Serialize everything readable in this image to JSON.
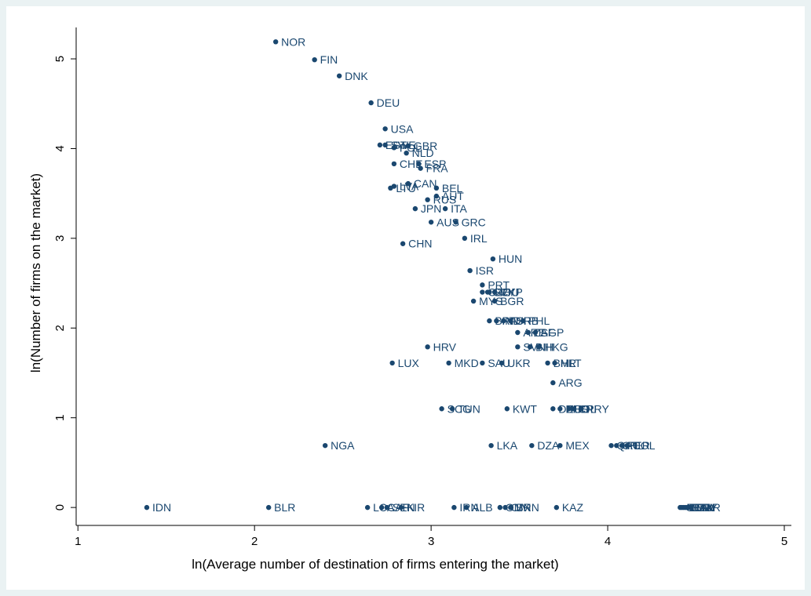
{
  "chart_data": {
    "type": "scatter",
    "title": "",
    "xlabel": "ln(Average number of destination of firms entering the market)",
    "ylabel": "ln(Number of firms on the market)",
    "xlim": [
      0.99,
      5.04
    ],
    "ylim": [
      -0.2,
      5.35
    ],
    "xticks": [
      1,
      2,
      3,
      4,
      5
    ],
    "yticks": [
      0,
      1,
      2,
      3,
      4,
      5
    ],
    "grid": false,
    "legend": "none",
    "marker_color": "#1a476f",
    "points": [
      {
        "label": "NOR",
        "x": 2.12,
        "y": 5.19
      },
      {
        "label": "FIN",
        "x": 2.34,
        "y": 4.99
      },
      {
        "label": "DNK",
        "x": 2.48,
        "y": 4.81
      },
      {
        "label": "DEU",
        "x": 2.66,
        "y": 4.51
      },
      {
        "label": "USA",
        "x": 2.74,
        "y": 4.22
      },
      {
        "label": "EST",
        "x": 2.71,
        "y": 4.04
      },
      {
        "label": "SWE",
        "x": 2.74,
        "y": 4.04
      },
      {
        "label": "GBR",
        "x": 2.87,
        "y": 4.03
      },
      {
        "label": "POL",
        "x": 2.79,
        "y": 4.01
      },
      {
        "label": "NLD",
        "x": 2.86,
        "y": 3.95
      },
      {
        "label": "CHE",
        "x": 2.79,
        "y": 3.83
      },
      {
        "label": "ESP",
        "x": 2.93,
        "y": 3.83
      },
      {
        "label": "FRA",
        "x": 2.94,
        "y": 3.78
      },
      {
        "label": "CAN",
        "x": 2.87,
        "y": 3.61
      },
      {
        "label": "LVA",
        "x": 2.79,
        "y": 3.58
      },
      {
        "label": "LTU",
        "x": 2.77,
        "y": 3.56
      },
      {
        "label": "BEL",
        "x": 3.03,
        "y": 3.56
      },
      {
        "label": "AUT",
        "x": 3.03,
        "y": 3.47
      },
      {
        "label": "RUS",
        "x": 2.98,
        "y": 3.43
      },
      {
        "label": "JPN",
        "x": 2.91,
        "y": 3.33
      },
      {
        "label": "ITA",
        "x": 3.08,
        "y": 3.33
      },
      {
        "label": "AUS",
        "x": 3.0,
        "y": 3.18
      },
      {
        "label": "GRC",
        "x": 3.14,
        "y": 3.18
      },
      {
        "label": "IRL",
        "x": 3.19,
        "y": 3.0
      },
      {
        "label": "CHN",
        "x": 2.84,
        "y": 2.94
      },
      {
        "label": "HUN",
        "x": 3.35,
        "y": 2.77
      },
      {
        "label": "ISR",
        "x": 3.22,
        "y": 2.64
      },
      {
        "label": "PRT",
        "x": 3.29,
        "y": 2.48
      },
      {
        "label": "CZE",
        "x": 3.29,
        "y": 2.4
      },
      {
        "label": "SVK",
        "x": 3.32,
        "y": 2.4
      },
      {
        "label": "ROU",
        "x": 3.33,
        "y": 2.4
      },
      {
        "label": "CYP",
        "x": 3.36,
        "y": 2.4
      },
      {
        "label": "MYS",
        "x": 3.24,
        "y": 2.3
      },
      {
        "label": "BGR",
        "x": 3.36,
        "y": 2.3
      },
      {
        "label": "BRA",
        "x": 3.33,
        "y": 2.08
      },
      {
        "label": "IND",
        "x": 3.37,
        "y": 2.08
      },
      {
        "label": "TUR",
        "x": 3.41,
        "y": 2.08
      },
      {
        "label": "SRB",
        "x": 3.45,
        "y": 2.08
      },
      {
        "label": "PHL",
        "x": 3.52,
        "y": 2.08
      },
      {
        "label": "ARE",
        "x": 3.49,
        "y": 1.95
      },
      {
        "label": "ZAF",
        "x": 3.55,
        "y": 1.95
      },
      {
        "label": "SGP",
        "x": 3.59,
        "y": 1.95
      },
      {
        "label": "HRV",
        "x": 2.98,
        "y": 1.79
      },
      {
        "label": "SVN",
        "x": 3.49,
        "y": 1.79
      },
      {
        "label": "BIH",
        "x": 3.56,
        "y": 1.79
      },
      {
        "label": "HKG",
        "x": 3.61,
        "y": 1.79
      },
      {
        "label": "LUX",
        "x": 2.78,
        "y": 1.61
      },
      {
        "label": "MKD",
        "x": 3.1,
        "y": 1.61
      },
      {
        "label": "SAU",
        "x": 3.29,
        "y": 1.61
      },
      {
        "label": "UKR",
        "x": 3.4,
        "y": 1.61
      },
      {
        "label": "BHR",
        "x": 3.66,
        "y": 1.61
      },
      {
        "label": "MLT",
        "x": 3.7,
        "y": 1.61
      },
      {
        "label": "ARG",
        "x": 3.69,
        "y": 1.39
      },
      {
        "label": "SCG",
        "x": 3.06,
        "y": 1.1
      },
      {
        "label": "TUN",
        "x": 3.12,
        "y": 1.1
      },
      {
        "label": "KWT",
        "x": 3.43,
        "y": 1.1
      },
      {
        "label": "DEU",
        "x": 3.69,
        "y": 1.1
      },
      {
        "label": "BHS",
        "x": 3.73,
        "y": 1.1
      },
      {
        "label": "BOL",
        "x": 3.78,
        "y": 1.1
      },
      {
        "label": "CRI",
        "x": 3.8,
        "y": 1.1
      },
      {
        "label": "PRY",
        "x": 3.85,
        "y": 1.1
      },
      {
        "label": "NGA",
        "x": 2.4,
        "y": 0.69
      },
      {
        "label": "LKA",
        "x": 3.34,
        "y": 0.69
      },
      {
        "label": "DZA",
        "x": 3.57,
        "y": 0.69
      },
      {
        "label": "MEX",
        "x": 3.73,
        "y": 0.69
      },
      {
        "label": "QAT",
        "x": 4.02,
        "y": 0.69
      },
      {
        "label": "CHL",
        "x": 4.05,
        "y": 0.69
      },
      {
        "label": "PER",
        "x": 4.08,
        "y": 0.69
      },
      {
        "label": "COL",
        "x": 4.11,
        "y": 0.69
      },
      {
        "label": "IDN",
        "x": 1.39,
        "y": 0.0
      },
      {
        "label": "BLR",
        "x": 2.08,
        "y": 0.0
      },
      {
        "label": "LCA",
        "x": 2.64,
        "y": 0.0
      },
      {
        "label": "CAF",
        "x": 2.72,
        "y": 0.0
      },
      {
        "label": "SEN",
        "x": 2.75,
        "y": 0.0
      },
      {
        "label": "KIR",
        "x": 2.83,
        "y": 0.0
      },
      {
        "label": "IRN",
        "x": 3.13,
        "y": 0.0
      },
      {
        "label": "ALB",
        "x": 3.2,
        "y": 0.0
      },
      {
        "label": "OMN",
        "x": 3.39,
        "y": 0.0
      },
      {
        "label": "CIV",
        "x": 3.42,
        "y": 0.0
      },
      {
        "label": "BRN",
        "x": 3.45,
        "y": 0.0
      },
      {
        "label": "KAZ",
        "x": 3.71,
        "y": 0.0
      },
      {
        "label": "GEO",
        "x": 4.41,
        "y": 0.0
      },
      {
        "label": "VEN",
        "x": 4.42,
        "y": 0.0
      },
      {
        "label": "ECU",
        "x": 4.43,
        "y": 0.0
      },
      {
        "label": "GTM",
        "x": 4.44,
        "y": 0.0
      },
      {
        "label": "PAN",
        "x": 4.45,
        "y": 0.0
      },
      {
        "label": "URY",
        "x": 4.46,
        "y": 0.0
      },
      {
        "label": "MAR",
        "x": 4.47,
        "y": 0.0
      }
    ]
  }
}
